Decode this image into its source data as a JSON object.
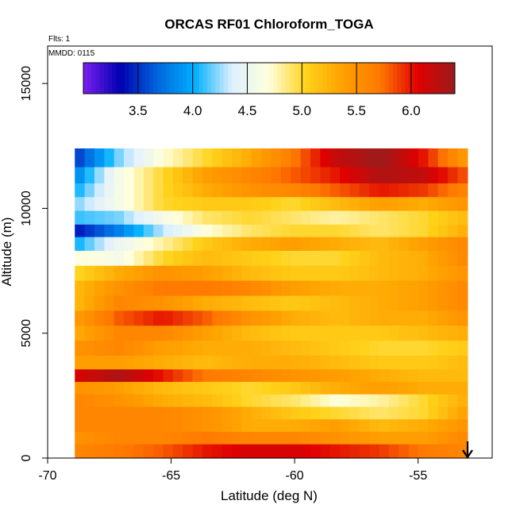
{
  "chart_data": {
    "type": "heatmap",
    "title": "ORCAS RF01 Chloroform_TOGA",
    "annotations": {
      "flights": "Flts: 1",
      "date": "MMDD: 0115"
    },
    "xlabel": "Latitude (deg N)",
    "ylabel": "Altitude (m)",
    "xlim": [
      -70,
      -52
    ],
    "ylim": [
      0,
      16500
    ],
    "x_ticks": [
      -70,
      -65,
      -60,
      -55
    ],
    "x_tick_labels": [
      "-70",
      "-65",
      "-60",
      "-55"
    ],
    "y_ticks": [
      0,
      5000,
      10000,
      15000
    ],
    "y_tick_labels": [
      "0",
      "5000",
      "10000",
      "15000"
    ],
    "colorbar": {
      "range": [
        3.0,
        6.4
      ],
      "ticks": [
        3.5,
        4.0,
        4.5,
        5.0,
        5.5,
        6.0
      ],
      "tick_labels": [
        "3.5",
        "4.0",
        "4.5",
        "5.0",
        "5.5",
        "6.0"
      ],
      "colors": [
        "#7a1ff0",
        "#0000b0",
        "#0066dd",
        "#00b0ff",
        "#dff0ff",
        "#ffffdd",
        "#ffd21a",
        "#ffa000",
        "#ff7800",
        "#e00000",
        "#9a1c1c"
      ]
    },
    "field_extent": {
      "lat": [
        -68.9,
        -53.0
      ],
      "alt": [
        0,
        12400
      ]
    },
    "altitude_bands": [
      {
        "alt": 12000,
        "lon_start": -68.9,
        "values": [
          3.5,
          4.2,
          4.7,
          5.0,
          5.3,
          5.7,
          6.2,
          6.4,
          6.0,
          5.4
        ]
      },
      {
        "alt": 11300,
        "lon_start": -68.9,
        "values": [
          3.8,
          4.6,
          5.0,
          5.4,
          5.6,
          5.8,
          6.0,
          6.3,
          6.2,
          5.8
        ]
      },
      {
        "alt": 10700,
        "lon_start": -68.9,
        "values": [
          4.0,
          4.6,
          5.0,
          5.3,
          5.5,
          5.6,
          5.8,
          6.0,
          5.9,
          5.6
        ]
      },
      {
        "alt": 10200,
        "lon_start": -68.9,
        "values": [
          4.2,
          4.6,
          5.0,
          5.1,
          5.1,
          5.0,
          5.2,
          5.4,
          5.3,
          5.5
        ]
      },
      {
        "alt": 9600,
        "lon_start": -68.9,
        "values": [
          4.1,
          4.2,
          4.6,
          4.9,
          5.0,
          4.9,
          4.8,
          4.9,
          5.0,
          5.2
        ]
      },
      {
        "alt": 9100,
        "lon_start": -68.9,
        "values": [
          3.4,
          3.8,
          4.3,
          4.7,
          4.9,
          5.0,
          5.0,
          4.9,
          5.0,
          5.3
        ]
      },
      {
        "alt": 8600,
        "lon_start": -68.9,
        "values": [
          4.0,
          4.5,
          4.8,
          5.1,
          5.3,
          5.4,
          5.3,
          5.2,
          5.4,
          5.6
        ]
      },
      {
        "alt": 8000,
        "lon_start": -68.9,
        "values": [
          4.7,
          4.6,
          5.0,
          5.2,
          5.1,
          5.0,
          5.0,
          5.2,
          5.3,
          5.6
        ]
      },
      {
        "alt": 7400,
        "lon_start": -68.9,
        "values": [
          5.0,
          5.3,
          5.5,
          5.4,
          5.2,
          5.1,
          5.1,
          5.2,
          5.3,
          5.5
        ]
      },
      {
        "alt": 6800,
        "lon_start": -68.9,
        "values": [
          5.2,
          5.5,
          5.7,
          5.7,
          5.6,
          5.4,
          5.3,
          5.3,
          5.4,
          5.6
        ]
      },
      {
        "alt": 6200,
        "lon_start": -68.9,
        "values": [
          5.2,
          5.6,
          5.5,
          5.3,
          5.2,
          5.1,
          5.2,
          5.3,
          5.4,
          5.6
        ]
      },
      {
        "alt": 5600,
        "lon_start": -68.9,
        "values": [
          5.4,
          5.8,
          6.0,
          5.8,
          5.5,
          5.3,
          5.2,
          5.3,
          5.3,
          5.5
        ]
      },
      {
        "alt": 5000,
        "lon_start": -68.9,
        "values": [
          5.3,
          5.6,
          5.6,
          5.4,
          5.2,
          5.1,
          5.1,
          5.1,
          5.2,
          5.3
        ]
      },
      {
        "alt": 4400,
        "lon_start": -68.9,
        "values": [
          5.5,
          5.6,
          5.4,
          5.3,
          5.3,
          5.2,
          5.1,
          5.0,
          5.0,
          5.1
        ]
      },
      {
        "alt": 3800,
        "lon_start": -68.9,
        "values": [
          5.4,
          5.4,
          5.3,
          5.2,
          5.3,
          5.3,
          5.2,
          5.1,
          5.1,
          5.2
        ]
      },
      {
        "alt": 3300,
        "lon_start": -68.9,
        "values": [
          6.1,
          6.3,
          6.0,
          5.7,
          5.6,
          5.5,
          5.4,
          5.3,
          5.2,
          5.2
        ]
      },
      {
        "alt": 2800,
        "lon_start": -68.9,
        "values": [
          5.5,
          5.4,
          5.2,
          5.1,
          5.0,
          5.1,
          5.3,
          5.4,
          5.3,
          5.3
        ]
      },
      {
        "alt": 2300,
        "lon_start": -68.9,
        "values": [
          5.6,
          5.5,
          5.3,
          5.2,
          5.0,
          4.9,
          4.7,
          4.8,
          5.0,
          5.3
        ]
      },
      {
        "alt": 1800,
        "lon_start": -68.9,
        "values": [
          5.6,
          5.6,
          5.6,
          5.5,
          5.3,
          5.1,
          5.0,
          4.9,
          5.0,
          5.4
        ]
      },
      {
        "alt": 1300,
        "lon_start": -68.9,
        "values": [
          5.6,
          5.6,
          5.6,
          5.5,
          5.3,
          5.3,
          5.4,
          5.2,
          5.3,
          5.5
        ]
      },
      {
        "alt": 800,
        "lon_start": -68.9,
        "values": [
          5.5,
          5.6,
          5.6,
          5.7,
          5.6,
          5.6,
          5.5,
          5.4,
          5.4,
          5.6
        ]
      },
      {
        "alt": 300,
        "lon_start": -68.9,
        "values": [
          5.6,
          5.7,
          5.8,
          6.0,
          6.1,
          6.1,
          6.0,
          5.9,
          5.7,
          5.6
        ]
      }
    ],
    "flight_track_marker": {
      "lat": -53.0,
      "label": "arrow-down"
    }
  }
}
